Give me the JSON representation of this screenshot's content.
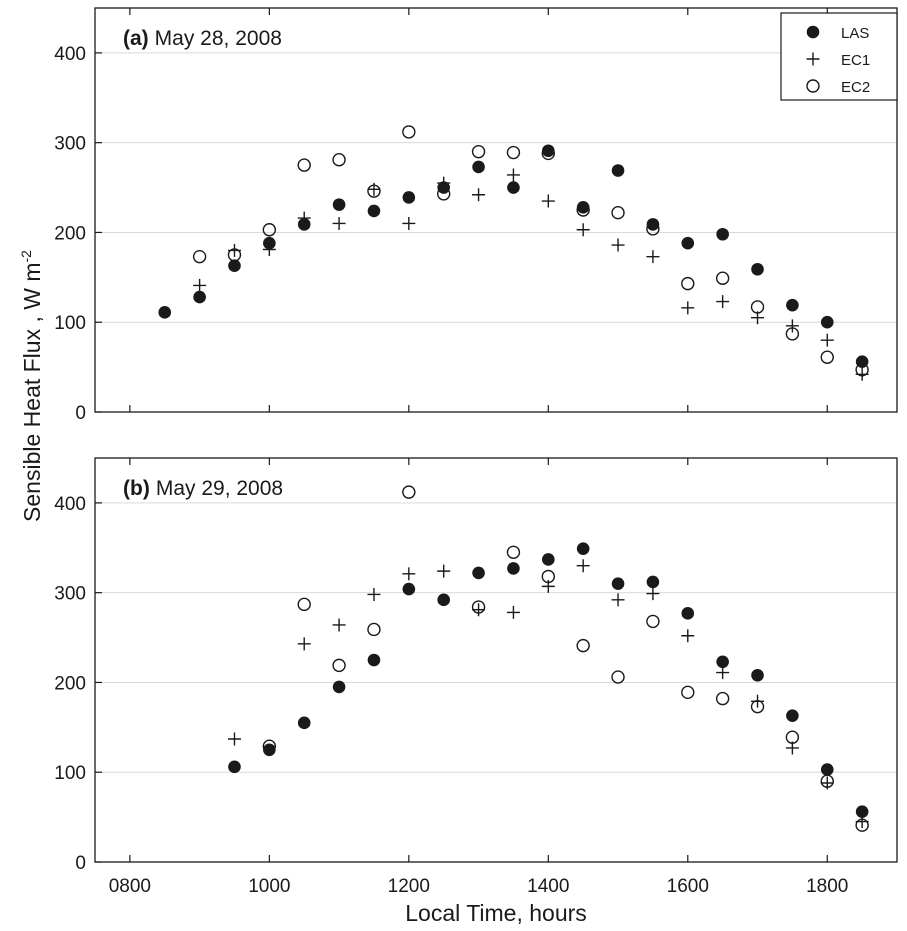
{
  "figure": {
    "ylabel": "Sensible Heat Flux ,  W m",
    "ylabel_superscript": "-2",
    "xlabel": "Local Time, hours"
  },
  "legend": {
    "location": "top-right",
    "entries": [
      {
        "label": "LAS",
        "marker": "filled-circle"
      },
      {
        "label": "EC1",
        "marker": "plus"
      },
      {
        "label": "EC2",
        "marker": "open-circle"
      }
    ]
  },
  "chart_data": [
    {
      "type": "scatter",
      "panel_letter": "(a)",
      "panel_date": "May 28, 2008",
      "xlim": [
        750,
        1900
      ],
      "ylim": [
        0,
        450
      ],
      "xticks": [
        "0800",
        "1000",
        "1200",
        "1400",
        "1600",
        "1800"
      ],
      "xtick_values": [
        800,
        1000,
        1200,
        1400,
        1600,
        1800
      ],
      "yticks": [
        0,
        100,
        200,
        300,
        400
      ],
      "grid": "horizontal",
      "series": [
        {
          "name": "LAS",
          "marker": "filled-circle",
          "points": [
            [
              850,
              111
            ],
            [
              900,
              128
            ],
            [
              950,
              163
            ],
            [
              1000,
              188
            ],
            [
              1050,
              209
            ],
            [
              1100,
              231
            ],
            [
              1150,
              224
            ],
            [
              1200,
              239
            ],
            [
              1250,
              250
            ],
            [
              1300,
              273
            ],
            [
              1350,
              250
            ],
            [
              1400,
              291
            ],
            [
              1450,
              228
            ],
            [
              1500,
              269
            ],
            [
              1550,
              209
            ],
            [
              1600,
              188
            ],
            [
              1650,
              198
            ],
            [
              1700,
              159
            ],
            [
              1750,
              119
            ],
            [
              1800,
              100
            ],
            [
              1850,
              56
            ]
          ]
        },
        {
          "name": "EC1",
          "marker": "plus",
          "points": [
            [
              900,
              141
            ],
            [
              950,
              180
            ],
            [
              1000,
              181
            ],
            [
              1050,
              216
            ],
            [
              1100,
              210
            ],
            [
              1150,
              248
            ],
            [
              1200,
              210
            ],
            [
              1250,
              255
            ],
            [
              1300,
              242
            ],
            [
              1350,
              264
            ],
            [
              1400,
              235
            ],
            [
              1450,
              203
            ],
            [
              1500,
              186
            ],
            [
              1550,
              173
            ],
            [
              1600,
              116
            ],
            [
              1650,
              123
            ],
            [
              1700,
              105
            ],
            [
              1750,
              96
            ],
            [
              1800,
              80
            ],
            [
              1850,
              42
            ]
          ]
        },
        {
          "name": "EC2",
          "marker": "open-circle",
          "points": [
            [
              900,
              173
            ],
            [
              950,
              175
            ],
            [
              1000,
              203
            ],
            [
              1050,
              275
            ],
            [
              1100,
              281
            ],
            [
              1150,
              246
            ],
            [
              1200,
              312
            ],
            [
              1250,
              243
            ],
            [
              1300,
              290
            ],
            [
              1350,
              289
            ],
            [
              1400,
              288
            ],
            [
              1450,
              225
            ],
            [
              1500,
              222
            ],
            [
              1550,
              204
            ],
            [
              1600,
              143
            ],
            [
              1650,
              149
            ],
            [
              1700,
              117
            ],
            [
              1750,
              87
            ],
            [
              1800,
              61
            ],
            [
              1850,
              47
            ]
          ]
        }
      ]
    },
    {
      "type": "scatter",
      "panel_letter": "(b)",
      "panel_date": "May 29, 2008",
      "xlim": [
        750,
        1900
      ],
      "ylim": [
        0,
        450
      ],
      "xticks": [
        "0800",
        "1000",
        "1200",
        "1400",
        "1600",
        "1800"
      ],
      "xtick_values": [
        800,
        1000,
        1200,
        1400,
        1600,
        1800
      ],
      "yticks": [
        0,
        100,
        200,
        300,
        400
      ],
      "grid": "horizontal",
      "series": [
        {
          "name": "LAS",
          "marker": "filled-circle",
          "points": [
            [
              950,
              106
            ],
            [
              1000,
              125
            ],
            [
              1050,
              155
            ],
            [
              1100,
              195
            ],
            [
              1150,
              225
            ],
            [
              1200,
              304
            ],
            [
              1250,
              292
            ],
            [
              1300,
              322
            ],
            [
              1350,
              327
            ],
            [
              1400,
              337
            ],
            [
              1450,
              349
            ],
            [
              1500,
              310
            ],
            [
              1550,
              312
            ],
            [
              1600,
              277
            ],
            [
              1650,
              223
            ],
            [
              1700,
              208
            ],
            [
              1750,
              163
            ],
            [
              1800,
              103
            ],
            [
              1850,
              56
            ]
          ]
        },
        {
          "name": "EC1",
          "marker": "plus",
          "points": [
            [
              950,
              137
            ],
            [
              1050,
              243
            ],
            [
              1100,
              264
            ],
            [
              1150,
              298
            ],
            [
              1200,
              321
            ],
            [
              1250,
              324
            ],
            [
              1300,
              281
            ],
            [
              1350,
              278
            ],
            [
              1400,
              307
            ],
            [
              1450,
              330
            ],
            [
              1500,
              292
            ],
            [
              1550,
              299
            ],
            [
              1600,
              252
            ],
            [
              1650,
              211
            ],
            [
              1700,
              179
            ],
            [
              1750,
              127
            ],
            [
              1800,
              88
            ],
            [
              1850,
              45
            ]
          ]
        },
        {
          "name": "EC2",
          "marker": "open-circle",
          "points": [
            [
              1000,
              129
            ],
            [
              1050,
              287
            ],
            [
              1100,
              219
            ],
            [
              1150,
              259
            ],
            [
              1200,
              412
            ],
            [
              1300,
              284
            ],
            [
              1350,
              345
            ],
            [
              1400,
              318
            ],
            [
              1450,
              241
            ],
            [
              1500,
              206
            ],
            [
              1550,
              268
            ],
            [
              1600,
              189
            ],
            [
              1650,
              182
            ],
            [
              1700,
              173
            ],
            [
              1750,
              139
            ],
            [
              1800,
              90
            ],
            [
              1850,
              41
            ]
          ]
        }
      ]
    }
  ]
}
